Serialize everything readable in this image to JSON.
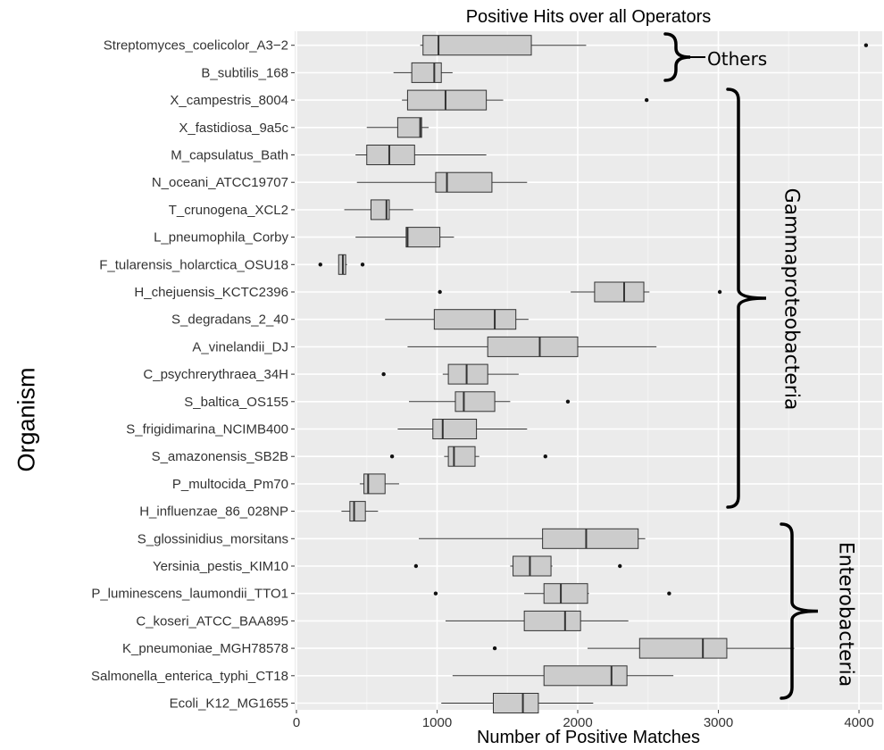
{
  "chart_data": {
    "type": "boxplot",
    "orientation": "horizontal",
    "title": "Positive Hits over all Operators",
    "xlabel": "Number of Positive Matches",
    "ylabel": "Organism",
    "xlim": [
      0,
      4150
    ],
    "xticks": [
      0,
      1000,
      2000,
      3000,
      4000
    ],
    "grid": true,
    "categories": [
      "Streptomyces_coelicolor_A3−2",
      "B_subtilis_168",
      "X_campestris_8004",
      "X_fastidiosa_9a5c",
      "M_capsulatus_Bath",
      "N_oceani_ATCC19707",
      "T_crunogena_XCL2",
      "L_pneumophila_Corby",
      "F_tularensis_holarctica_OSU18",
      "H_chejuensis_KCTC2396",
      "S_degradans_2_40",
      "A_vinelandii_DJ",
      "C_psychrerythraea_34H",
      "S_baltica_OS155",
      "S_frigidimarina_NCIMB400",
      "S_amazonensis_SB2B",
      "P_multocida_Pm70",
      "H_influenzae_86_028NP",
      "S_glossinidius_morsitans",
      "Yersinia_pestis_KIM10",
      "P_luminescens_laumondii_TTO1",
      "C_koseri_ATCC_BAA895",
      "K_pneumoniae_MGH78578",
      "Salmonella_enterica_typhi_CT18",
      "Ecoli_K12_MG1655"
    ],
    "boxes": [
      {
        "whisker_low": 880,
        "q1": 900,
        "median": 1010,
        "q3": 1670,
        "whisker_high": 2060,
        "outliers": [
          4050
        ]
      },
      {
        "whisker_low": 690,
        "q1": 820,
        "median": 980,
        "q3": 1030,
        "whisker_high": 1110,
        "outliers": []
      },
      {
        "whisker_low": 750,
        "q1": 790,
        "median": 1060,
        "q3": 1350,
        "whisker_high": 1470,
        "outliers": [
          2490
        ]
      },
      {
        "whisker_low": 500,
        "q1": 720,
        "median": 880,
        "q3": 890,
        "whisker_high": 940,
        "outliers": []
      },
      {
        "whisker_low": 420,
        "q1": 500,
        "median": 660,
        "q3": 840,
        "whisker_high": 1350,
        "outliers": []
      },
      {
        "whisker_low": 430,
        "q1": 990,
        "median": 1070,
        "q3": 1390,
        "whisker_high": 1640,
        "outliers": []
      },
      {
        "whisker_low": 340,
        "q1": 530,
        "median": 640,
        "q3": 660,
        "whisker_high": 830,
        "outliers": []
      },
      {
        "whisker_low": 420,
        "q1": 780,
        "median": 790,
        "q3": 1020,
        "whisker_high": 1120,
        "outliers": []
      },
      {
        "whisker_low": 300,
        "q1": 300,
        "median": 330,
        "q3": 350,
        "whisker_high": 360,
        "outliers": [
          170,
          470
        ]
      },
      {
        "whisker_low": 1950,
        "q1": 2120,
        "median": 2330,
        "q3": 2470,
        "whisker_high": 2510,
        "outliers": [
          1020,
          3010
        ]
      },
      {
        "whisker_low": 630,
        "q1": 980,
        "median": 1410,
        "q3": 1560,
        "whisker_high": 1650,
        "outliers": []
      },
      {
        "whisker_low": 790,
        "q1": 1360,
        "median": 1730,
        "q3": 2000,
        "whisker_high": 2560,
        "outliers": []
      },
      {
        "whisker_low": 1040,
        "q1": 1080,
        "median": 1210,
        "q3": 1360,
        "whisker_high": 1580,
        "outliers": [
          620
        ]
      },
      {
        "whisker_low": 800,
        "q1": 1130,
        "median": 1190,
        "q3": 1410,
        "whisker_high": 1520,
        "outliers": [
          1930
        ]
      },
      {
        "whisker_low": 720,
        "q1": 970,
        "median": 1040,
        "q3": 1280,
        "whisker_high": 1640,
        "outliers": []
      },
      {
        "whisker_low": 1050,
        "q1": 1080,
        "median": 1120,
        "q3": 1270,
        "whisker_high": 1300,
        "outliers": [
          680,
          1770
        ]
      },
      {
        "whisker_low": 450,
        "q1": 480,
        "median": 510,
        "q3": 630,
        "whisker_high": 730,
        "outliers": []
      },
      {
        "whisker_low": 320,
        "q1": 380,
        "median": 410,
        "q3": 490,
        "whisker_high": 580,
        "outliers": []
      },
      {
        "whisker_low": 870,
        "q1": 1750,
        "median": 2060,
        "q3": 2430,
        "whisker_high": 2480,
        "outliers": []
      },
      {
        "whisker_low": 1520,
        "q1": 1540,
        "median": 1660,
        "q3": 1810,
        "whisker_high": 1820,
        "outliers": [
          850,
          2300
        ]
      },
      {
        "whisker_low": 1620,
        "q1": 1760,
        "median": 1880,
        "q3": 2070,
        "whisker_high": 2080,
        "outliers": [
          990,
          2650
        ]
      },
      {
        "whisker_low": 1060,
        "q1": 1620,
        "median": 1910,
        "q3": 2020,
        "whisker_high": 2360,
        "outliers": []
      },
      {
        "whisker_low": 2070,
        "q1": 2440,
        "median": 2890,
        "q3": 3060,
        "whisker_high": 3540,
        "outliers": [
          1410
        ]
      },
      {
        "whisker_low": 1110,
        "q1": 1760,
        "median": 2240,
        "q3": 2350,
        "whisker_high": 2680,
        "outliers": []
      },
      {
        "whisker_low": 1030,
        "q1": 1400,
        "median": 1610,
        "q3": 1720,
        "whisker_high": 2110,
        "outliers": []
      }
    ],
    "groups": [
      {
        "label": "Others",
        "first": 0,
        "last": 1
      },
      {
        "label": "Gammaproteobacteria",
        "first": 2,
        "last": 17
      },
      {
        "label": "Enterobacteria",
        "first": 18,
        "last": 24
      }
    ],
    "colors": {
      "panel": "#ebebeb",
      "grid_major": "#ffffff",
      "grid_minor": "#f5f5f5",
      "box_fill": "#cccccc",
      "box_stroke": "#333333",
      "whisker": "#333333"
    }
  }
}
